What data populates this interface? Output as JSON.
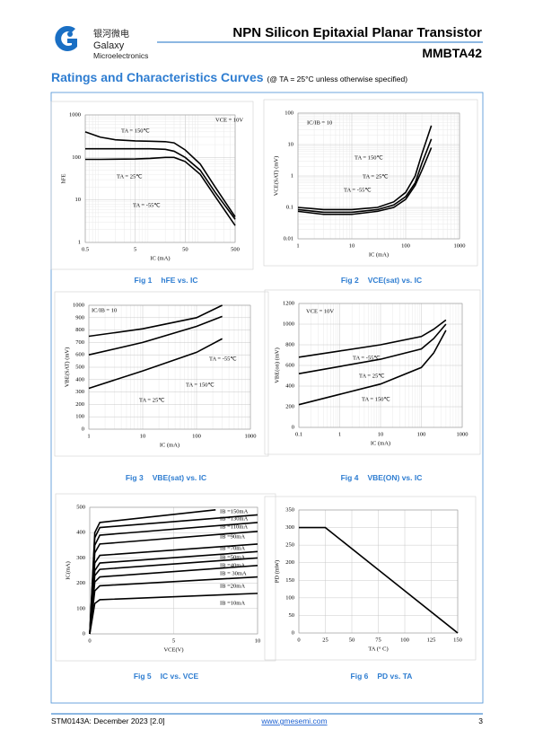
{
  "header": {
    "logo_cn": "银河微电",
    "logo_name": "Galaxy",
    "logo_sub": "Microelectronics",
    "title": "NPN Silicon Epitaxial Planar Transistor",
    "part": "MMBTA42"
  },
  "section": {
    "title": "Ratings and Characteristics Curves",
    "note": "(@ TA = 25°C unless otherwise specified)"
  },
  "figures": [
    {
      "number": "Fig 1",
      "caption": "hFE vs. IC",
      "chart": {
        "type": "line",
        "xlabel": "IC (mA)",
        "ylabel": "hFE",
        "xlog": true,
        "ylog": true,
        "grid": true,
        "xlim": [
          0.5,
          500
        ],
        "ylim": [
          1,
          1000
        ],
        "xticks": [
          0.5,
          5,
          50,
          500
        ],
        "yticks": [
          1,
          10,
          100,
          1000
        ],
        "annotations": [
          "VCE = 10V"
        ],
        "series": [
          {
            "name": "TA = 150℃",
            "color": "#000000",
            "x": [
              0.5,
              1,
              2,
              5,
              10,
              20,
              30,
              50,
              100,
              200,
              500
            ],
            "values": [
              400,
              300,
              260,
              245,
              240,
              235,
              220,
              150,
              70,
              20,
              4
            ]
          },
          {
            "name": "TA = 25℃",
            "color": "#000000",
            "x": [
              0.5,
              1,
              5,
              10,
              20,
              30,
              50,
              100,
              200,
              500
            ],
            "values": [
              160,
              160,
              160,
              160,
              155,
              140,
              100,
              50,
              15,
              3.5
            ]
          },
          {
            "name": "TA = -55℃",
            "color": "#000000",
            "x": [
              0.5,
              1,
              5,
              10,
              20,
              30,
              50,
              100,
              200,
              500
            ],
            "values": [
              90,
              90,
              92,
              95,
              100,
              100,
              80,
              40,
              12,
              2.5
            ]
          }
        ]
      }
    },
    {
      "number": "Fig 2",
      "caption": "VCE(sat) vs. IC",
      "chart": {
        "type": "line",
        "xlabel": "IC (mA)",
        "ylabel": "VCE(SAT) (mV)",
        "xlog": true,
        "ylog": true,
        "grid": true,
        "xlim": [
          1,
          1000
        ],
        "ylim": [
          0.01,
          100
        ],
        "xticks": [
          1,
          10,
          100,
          1000
        ],
        "yticks": [
          0.01,
          0.1,
          1,
          10,
          100
        ],
        "annotations": [
          "IC/IB = 10"
        ],
        "series": [
          {
            "name": "TA = 150℃",
            "color": "#000000",
            "x": [
              1,
              3,
              10,
              30,
              60,
              100,
              150,
              200,
              300
            ],
            "values": [
              0.1,
              0.085,
              0.085,
              0.1,
              0.15,
              0.3,
              1,
              5,
              40
            ]
          },
          {
            "name": "TA = 25℃",
            "color": "#000000",
            "x": [
              1,
              3,
              10,
              30,
              60,
              100,
              150,
              200,
              300
            ],
            "values": [
              0.085,
              0.07,
              0.07,
              0.085,
              0.12,
              0.22,
              0.6,
              2.5,
              15
            ]
          },
          {
            "name": "TA = -55℃",
            "color": "#000000",
            "x": [
              1,
              3,
              10,
              30,
              60,
              100,
              150,
              200,
              300
            ],
            "values": [
              0.075,
              0.06,
              0.06,
              0.075,
              0.1,
              0.18,
              0.5,
              1.5,
              8
            ]
          }
        ]
      }
    },
    {
      "number": "Fig 3",
      "caption": "VBE(sat) vs. IC",
      "chart": {
        "type": "line",
        "xlabel": "IC (mA)",
        "ylabel": "VBE(SAT) (mV)",
        "xlog": true,
        "ylog": false,
        "grid": true,
        "xlim": [
          1,
          1000
        ],
        "ylim": [
          0,
          1000
        ],
        "xticks": [
          1,
          10,
          100,
          1000
        ],
        "yticks": [
          0,
          100,
          200,
          300,
          400,
          500,
          600,
          700,
          800,
          900,
          1000
        ],
        "annotations": [
          "IC/IB = 10"
        ],
        "series": [
          {
            "name": "TA = -55℃",
            "color": "#000000",
            "x": [
              1,
              10,
              100,
              300
            ],
            "values": [
              750,
              810,
              900,
              1000
            ]
          },
          {
            "name": "TA = 25℃",
            "color": "#000000",
            "x": [
              1,
              10,
              100,
              300
            ],
            "values": [
              600,
              700,
              830,
              910
            ]
          },
          {
            "name": "TA = 150℃",
            "color": "#000000",
            "x": [
              1,
              10,
              100,
              300
            ],
            "values": [
              330,
              470,
              620,
              730
            ]
          }
        ]
      }
    },
    {
      "number": "Fig 4",
      "caption": "VBE(ON) vs. IC",
      "chart": {
        "type": "line",
        "xlabel": "IC (mA)",
        "ylabel": "VBE(on) (mV)",
        "xlog": true,
        "ylog": false,
        "grid": true,
        "xlim": [
          0.1,
          1000
        ],
        "ylim": [
          0,
          1200
        ],
        "xticks": [
          0.1,
          1,
          10,
          100,
          1000
        ],
        "yticks": [
          0,
          200,
          400,
          600,
          800,
          1000,
          1200
        ],
        "annotations": [
          "VCE = 10V"
        ],
        "series": [
          {
            "name": "TA = -55℃",
            "color": "#000000",
            "x": [
              0.1,
              1,
              10,
              100,
              200,
              400
            ],
            "values": [
              680,
              740,
              800,
              880,
              950,
              1040
            ]
          },
          {
            "name": "TA = 25℃",
            "color": "#000000",
            "x": [
              0.1,
              1,
              10,
              100,
              200,
              400
            ],
            "values": [
              520,
              590,
              660,
              760,
              860,
              1000
            ]
          },
          {
            "name": "TA = 150℃",
            "color": "#000000",
            "x": [
              0.1,
              1,
              10,
              100,
              200,
              400
            ],
            "values": [
              220,
              320,
              420,
              580,
              720,
              940
            ]
          }
        ]
      }
    },
    {
      "number": "Fig 5",
      "caption": "IC vs. VCE",
      "chart": {
        "type": "line",
        "xlabel": "VCE(V)",
        "ylabel": "IC(mA)",
        "xlog": false,
        "ylog": false,
        "grid": true,
        "xlim": [
          0,
          10
        ],
        "ylim": [
          0,
          500
        ],
        "xticks": [
          0,
          5,
          10
        ],
        "yticks": [
          0,
          100,
          200,
          300,
          400,
          500
        ],
        "series": [
          {
            "name": "IB =150mA",
            "color": "#000000",
            "x": [
              0,
              0.3,
              0.6,
              7.5
            ],
            "values": [
              0,
              400,
              440,
              490
            ]
          },
          {
            "name": "IB =130mA",
            "color": "#000000",
            "x": [
              0,
              0.3,
              0.6,
              10
            ],
            "values": [
              0,
              380,
              420,
              470
            ]
          },
          {
            "name": "IB =110mA",
            "color": "#000000",
            "x": [
              0,
              0.3,
              0.6,
              10
            ],
            "values": [
              0,
              350,
              390,
              440
            ]
          },
          {
            "name": "IB =90mA",
            "color": "#000000",
            "x": [
              0,
              0.3,
              0.6,
              10
            ],
            "values": [
              0,
              320,
              355,
              405
            ]
          },
          {
            "name": "IB =70mA",
            "color": "#000000",
            "x": [
              0,
              0.3,
              0.6,
              10
            ],
            "values": [
              0,
              280,
              310,
              355
            ]
          },
          {
            "name": "IB =50mA",
            "color": "#000000",
            "x": [
              0,
              0.3,
              0.6,
              10
            ],
            "values": [
              0,
              250,
              280,
              325
            ]
          },
          {
            "name": "IB =40mA",
            "color": "#000000",
            "x": [
              0,
              0.3,
              0.6,
              10
            ],
            "values": [
              0,
              230,
              255,
              300
            ]
          },
          {
            "name": "IB = 30mA",
            "color": "#000000",
            "x": [
              0,
              0.3,
              0.6,
              10
            ],
            "values": [
              0,
              205,
              225,
              270
            ]
          },
          {
            "name": "IB =20mA",
            "color": "#000000",
            "x": [
              0,
              0.3,
              0.6,
              10
            ],
            "values": [
              0,
              170,
              190,
              225
            ]
          },
          {
            "name": "IB =10mA",
            "color": "#000000",
            "x": [
              0,
              0.3,
              0.6,
              10
            ],
            "values": [
              0,
              120,
              135,
              160
            ]
          }
        ]
      }
    },
    {
      "number": "Fig 6",
      "caption": "PD vs. TA",
      "chart": {
        "type": "line",
        "xlabel": "TA (° C)",
        "ylabel": "PD (mW)",
        "xlog": false,
        "ylog": false,
        "grid": true,
        "xlim": [
          0,
          150
        ],
        "ylim": [
          0,
          350
        ],
        "xticks": [
          0,
          25,
          50,
          75,
          100,
          125,
          150
        ],
        "yticks": [
          0,
          50,
          100,
          150,
          200,
          250,
          300,
          350
        ],
        "series": [
          {
            "color": "#000000",
            "x": [
              0,
              25,
              150
            ],
            "values": [
              300,
              300,
              0
            ]
          }
        ]
      }
    }
  ],
  "footer": {
    "doc": "STM0143A: December 2023 [2.0]",
    "url": "www.gmesemi.com",
    "page": "3"
  }
}
